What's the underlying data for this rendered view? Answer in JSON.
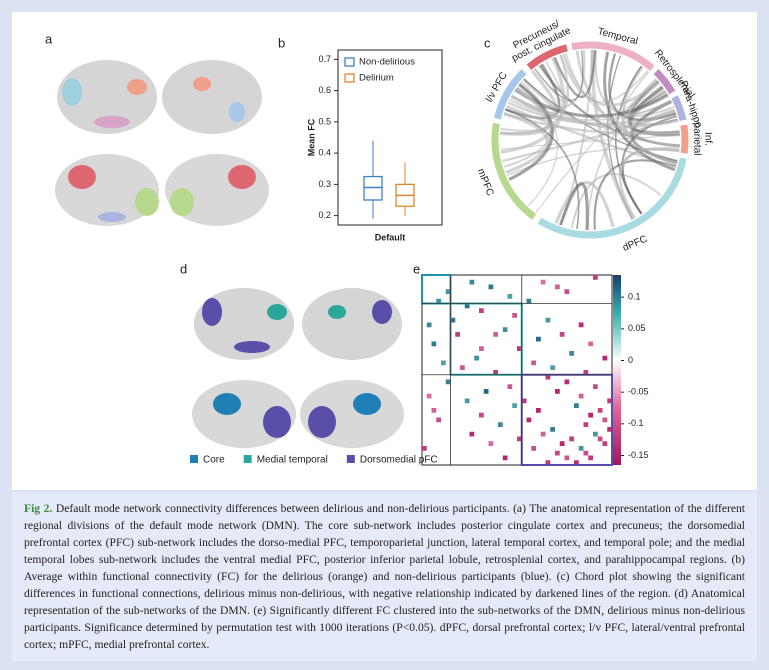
{
  "panel_labels": [
    "a",
    "b",
    "c",
    "d",
    "e"
  ],
  "panel_b": {
    "type": "box",
    "ylabel": "Mean FC",
    "xlabel": "Default",
    "ylim": [
      0.17,
      0.73
    ],
    "yticks": [
      0.2,
      0.3,
      0.4,
      0.5,
      0.6,
      0.7
    ],
    "series": [
      {
        "name": "Non-delirious",
        "color": "#3b82c4",
        "min": 0.19,
        "q1": 0.25,
        "median": 0.29,
        "q3": 0.325,
        "max": 0.44
      },
      {
        "name": "Delirium",
        "color": "#e0852e",
        "min": 0.2,
        "q1": 0.23,
        "median": 0.265,
        "q3": 0.3,
        "max": 0.37
      }
    ]
  },
  "panel_c": {
    "segments": [
      {
        "label": [
          "Precuneus/",
          "post. cingulate"
        ],
        "color": "#dc6770"
      },
      {
        "label": [
          "Temporal"
        ],
        "color": "#eeb0c4"
      },
      {
        "label": [
          "Retrosplenial"
        ],
        "color": "#c08ec0"
      },
      {
        "label": [
          "Para-hippo"
        ],
        "color": "#aab4de"
      },
      {
        "label": [
          "Inf.",
          "parietal"
        ],
        "color": "#f0a088"
      },
      {
        "label": [
          "dPFC"
        ],
        "color": "#a8dbe2"
      },
      {
        "label": [
          "mPFC"
        ],
        "color": "#b6d98e"
      },
      {
        "label": [
          "l/v PFC"
        ],
        "color": "#a6c7ea"
      }
    ]
  },
  "panel_d": {
    "legend": [
      {
        "name": "Core",
        "color": "#1f7fb5"
      },
      {
        "name": "Medial temporal",
        "color": "#2aa79b"
      },
      {
        "name": "Dorsomedial pFC",
        "color": "#5a4fa8"
      }
    ]
  },
  "panel_e": {
    "clim": [
      -0.165,
      0.135
    ],
    "cticks": [
      0.1,
      0.05,
      0,
      -0.05,
      -0.1,
      -0.15
    ],
    "size": 40,
    "cells": [
      [
        1,
        10,
        0.08
      ],
      [
        1,
        25,
        -0.06
      ],
      [
        2,
        14,
        0.1
      ],
      [
        3,
        30,
        -0.1
      ],
      [
        0,
        36,
        -0.12
      ],
      [
        4,
        18,
        0.05
      ],
      [
        2,
        28,
        -0.08
      ],
      [
        5,
        22,
        0.09
      ],
      [
        7,
        12,
        -0.12
      ],
      [
        8,
        19,
        -0.09
      ],
      [
        9,
        26,
        0.06
      ],
      [
        10,
        33,
        -0.14
      ],
      [
        11,
        17,
        0.07
      ],
      [
        12,
        29,
        -0.11
      ],
      [
        13,
        24,
        0.12
      ],
      [
        14,
        35,
        -0.07
      ],
      [
        15,
        20,
        -0.13
      ],
      [
        16,
        31,
        0.08
      ],
      [
        17,
        38,
        -0.15
      ],
      [
        18,
        23,
        -0.09
      ],
      [
        19,
        27,
        0.05
      ],
      [
        20,
        34,
        -0.12
      ],
      [
        22,
        30,
        -0.14
      ],
      [
        23,
        36,
        -0.1
      ],
      [
        24,
        28,
        -0.15
      ],
      [
        25,
        33,
        -0.08
      ],
      [
        26,
        39,
        -0.13
      ],
      [
        27,
        32,
        0.09
      ],
      [
        28,
        37,
        -0.11
      ],
      [
        29,
        35,
        -0.15
      ],
      [
        30,
        38,
        -0.09
      ],
      [
        31,
        34,
        -0.12
      ],
      [
        32,
        39,
        -0.14
      ],
      [
        33,
        36,
        0.06
      ],
      [
        34,
        37,
        -0.1
      ],
      [
        21,
        26,
        -0.13
      ],
      [
        6,
        9,
        0.11
      ],
      [
        12,
        15,
        -0.08
      ],
      [
        35,
        38,
        -0.12
      ],
      [
        3,
        5,
        0.07
      ]
    ]
  },
  "caption": {
    "label": "Fig 2.",
    "text": "Default mode network connectivity differences between delirious and non-delirious participants. (a) The anatomical representation of the different regional divisions of the default mode network (DMN). The core sub-network includes posterior cingulate cortex and precuneus; the dorsomedial prefrontal cortex (PFC) sub-network includes the dorso-medial PFC, temporoparietal junction, lateral temporal cortex, and temporal pole; and the medial temporal lobes sub-network includes the ventral medial PFC, posterior inferior parietal lobule, retrosplenial cortex, and parahippocampal regions. (b) Average within functional connectivity (FC) for the delirious (orange) and non-delirious participants (blue). (c) Chord plot showing the significant differences in functional connections, delirious minus non-delirious, with negative relationship indicated by darkened lines of the region. (d) Anatomical representation of the sub-networks of the DMN. (e) Significantly different FC clustered into the sub-networks of the DMN, delirious minus non-delirious participants. Significance determined by permutation test with 1000 iterations (P<0.05). dPFC, dorsal prefrontal cortex; l/v PFC, lateral/ventral prefrontal cortex; mPFC, medial prefrontal cortex."
  }
}
